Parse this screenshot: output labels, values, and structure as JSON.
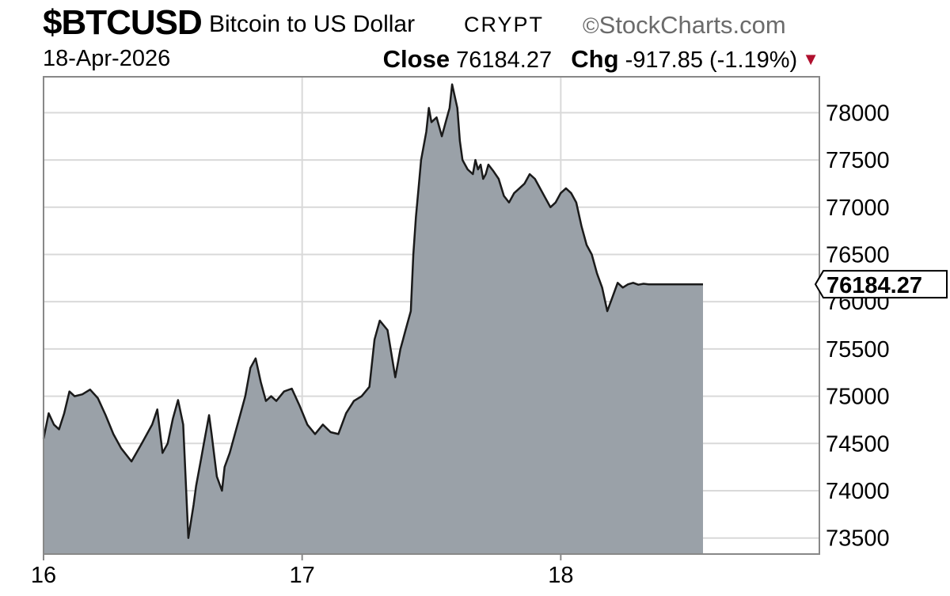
{
  "header": {
    "symbol": "$BTCUSD",
    "company": "Bitcoin to US Dollar",
    "exchange": "CRYPT",
    "brand": "StockCharts.com",
    "date": "18-Apr-2026",
    "close_label": "Close",
    "close_value": "76184.27",
    "chg_label": "Chg",
    "chg_value": "-917.85 (-1.19%)"
  },
  "colors": {
    "area_fill": "#9aa1a8",
    "line": "#1a1a1a",
    "grid": "#d9d9d9",
    "down_arrow": "#b0102e"
  },
  "chart_data": {
    "type": "area",
    "title": "$BTCUSD Bitcoin to US Dollar",
    "xlabel": "",
    "ylabel": "",
    "grid": true,
    "xlim": [
      16,
      19
    ],
    "ylim": [
      73330,
      78380
    ],
    "x_tick_labels": [
      "16",
      "17",
      "18"
    ],
    "y_tick_labels": [
      "73500",
      "74000",
      "74500",
      "75000",
      "75500",
      "76000",
      "76500",
      "77000",
      "77500",
      "78000"
    ],
    "last_value_label": "76184.27",
    "series": [
      {
        "x": [
          16.0,
          16.02,
          16.04,
          16.06,
          16.08,
          16.1,
          16.12,
          16.15,
          16.18,
          16.21,
          16.24,
          16.27,
          16.3,
          16.34,
          16.38,
          16.42,
          16.44,
          16.46,
          16.48,
          16.5,
          16.52,
          16.54,
          16.56,
          16.58,
          16.59,
          16.6,
          16.61,
          16.62,
          16.64,
          16.65,
          16.67,
          16.69,
          16.7,
          16.72,
          16.74,
          16.76,
          16.78,
          16.8,
          16.82,
          16.84,
          16.86,
          16.88,
          16.9,
          16.93,
          16.96,
          16.99,
          17.02,
          17.05,
          17.08,
          17.11,
          17.14,
          17.17,
          17.2,
          17.23,
          17.26,
          17.28,
          17.3,
          17.33,
          17.36,
          17.38,
          17.39,
          17.4,
          17.42,
          17.43,
          17.44,
          17.45,
          17.46,
          17.48,
          17.49,
          17.5,
          17.52,
          17.54,
          17.56,
          17.57,
          17.58,
          17.6,
          17.61,
          17.62,
          17.64,
          17.66,
          17.67,
          17.68,
          17.69,
          17.7,
          17.71,
          17.72,
          17.74,
          17.76,
          17.78,
          17.8,
          17.82,
          17.84,
          17.86,
          17.88,
          17.9,
          17.92,
          17.94,
          17.96,
          17.98,
          18.0,
          18.02,
          18.04,
          18.06,
          18.08,
          18.1,
          18.12,
          18.14,
          18.16,
          18.18,
          18.2,
          18.22,
          18.24,
          18.26,
          18.28,
          18.3,
          18.32,
          18.34,
          18.36,
          18.38,
          18.4,
          18.42,
          18.44,
          18.46,
          18.48,
          18.49,
          18.5,
          18.51,
          18.52,
          18.53,
          18.54,
          18.55
        ],
        "values": [
          74550,
          74820,
          74700,
          74650,
          74820,
          75050,
          75000,
          75020,
          75070,
          74980,
          74800,
          74600,
          74450,
          74310,
          74500,
          74700,
          74860,
          74400,
          74500,
          74760,
          74960,
          74700,
          73500,
          73850,
          74050,
          74200,
          74350,
          74500,
          74800,
          74600,
          74150,
          74000,
          74250,
          74400,
          74600,
          74800,
          75000,
          75300,
          75400,
          75150,
          74950,
          75000,
          74950,
          75050,
          75080,
          74900,
          74700,
          74600,
          74700,
          74620,
          74600,
          74820,
          74950,
          75000,
          75100,
          75600,
          75800,
          75700,
          75200,
          75500,
          75600,
          75700,
          75900,
          76500,
          76900,
          77200,
          77500,
          77800,
          78050,
          77900,
          77950,
          77750,
          77950,
          78050,
          78300,
          78050,
          77700,
          77500,
          77400,
          77350,
          77500,
          77400,
          77450,
          77300,
          77350,
          77450,
          77380,
          77300,
          77120,
          77050,
          77150,
          77200,
          77250,
          77350,
          77300,
          77200,
          77100,
          77000,
          77050,
          77150,
          77200,
          77150,
          77050,
          76800,
          76600,
          76500,
          76300,
          76150,
          75900,
          76050,
          76200,
          76150,
          76184.27,
          76200,
          76180,
          76190,
          76184.27,
          76184.27,
          76184.27,
          76184.27,
          76184.27,
          76184.27,
          76184.27,
          76184.27,
          76184.27,
          76184.27,
          76184.27,
          76184.27,
          76184.27,
          76184.27,
          76184.27
        ]
      }
    ]
  }
}
